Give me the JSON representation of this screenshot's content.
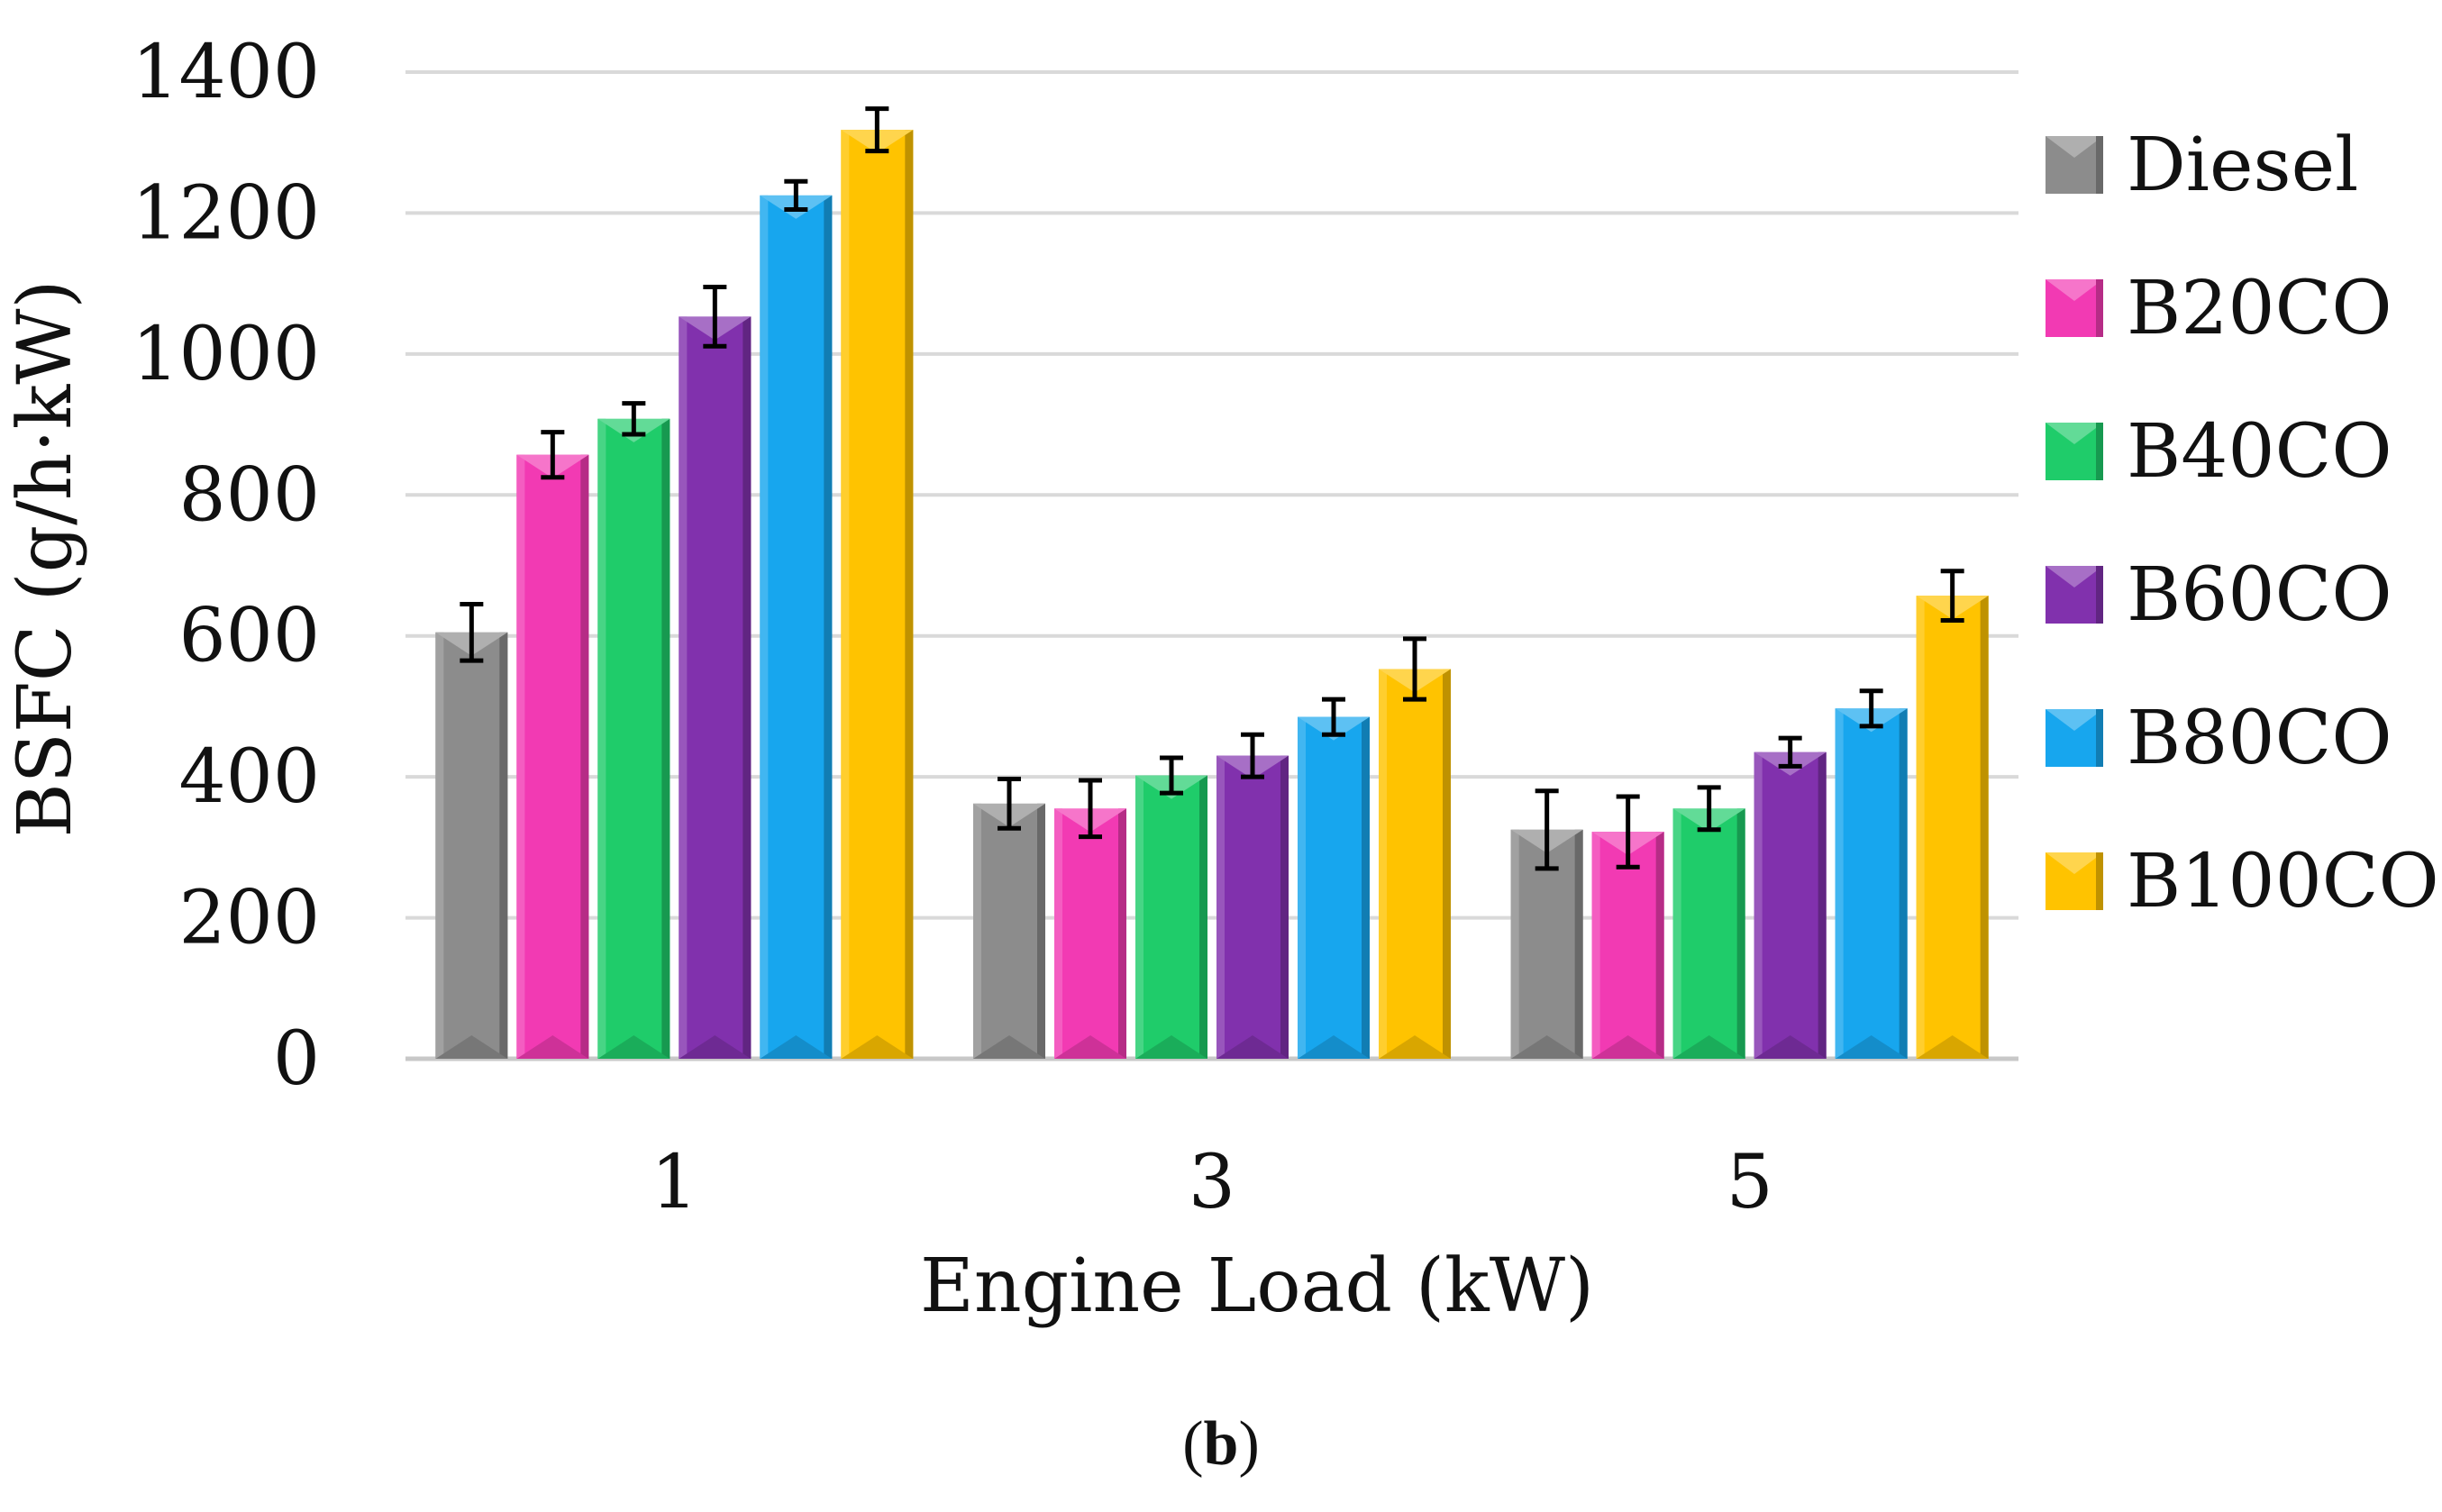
{
  "chart_data": {
    "type": "bar",
    "title": "",
    "xlabel": "Engine Load (kW)",
    "ylabel": "BSFC (g/h·kW)",
    "ylim": [
      0,
      1400
    ],
    "yticks": [
      0,
      200,
      400,
      600,
      800,
      1000,
      1200,
      1400
    ],
    "grid": true,
    "legend_position": "right",
    "categories": [
      "1",
      "3",
      "5"
    ],
    "series": [
      {
        "name": "Diesel",
        "color": "#8c8c8c",
        "values": [
          605,
          362,
          325
        ],
        "errors": [
          40,
          35,
          55
        ]
      },
      {
        "name": "B20CO",
        "color": "#f23ab3",
        "values": [
          857,
          355,
          322
        ],
        "errors": [
          32,
          40,
          50
        ]
      },
      {
        "name": "B40CO",
        "color": "#1fcc6a",
        "values": [
          908,
          402,
          355
        ],
        "errors": [
          22,
          25,
          30
        ]
      },
      {
        "name": "B60CO",
        "color": "#8131ad",
        "values": [
          1053,
          430,
          435
        ],
        "errors": [
          42,
          30,
          20
        ]
      },
      {
        "name": "B80CO",
        "color": "#17a6ee",
        "values": [
          1225,
          485,
          497
        ],
        "errors": [
          20,
          25,
          25
        ]
      },
      {
        "name": "B100CO",
        "color": "#ffc300",
        "values": [
          1318,
          553,
          657
        ],
        "errors": [
          30,
          43,
          35
        ]
      }
    ],
    "caption_prefix": "(",
    "caption_label": "b",
    "caption_suffix": ")"
  }
}
